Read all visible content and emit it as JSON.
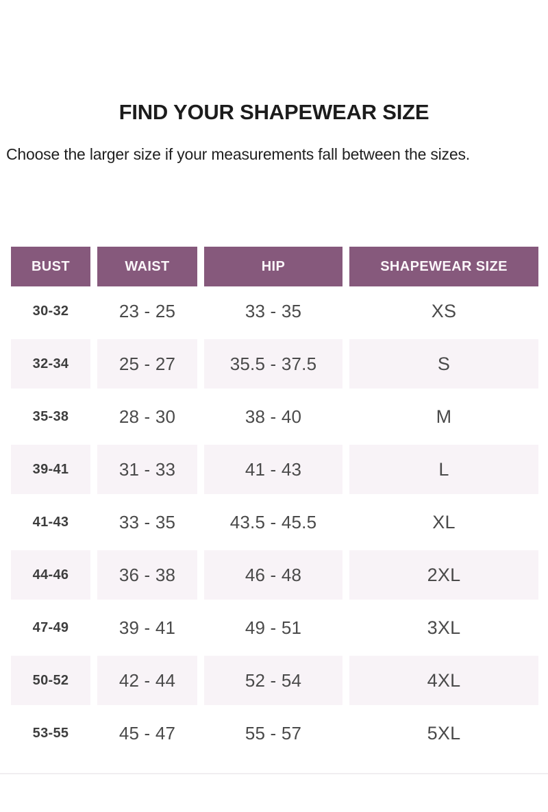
{
  "page": {
    "title": "FIND YOUR SHAPEWEAR SIZE",
    "subtitle": "Choose the larger size if your measurements fall between the sizes."
  },
  "colors": {
    "header_bg": "#86597c",
    "header_text": "#fbf7fa",
    "alt_row_bg": "#f8f3f7",
    "body_text": "#4a4a4a",
    "bust_text": "#3d3d3d",
    "title_text": "#1c1c1c",
    "divider": "#f0eef0"
  },
  "size_chart": {
    "columns": [
      "BUST",
      "WAIST",
      "HIP",
      "SHAPEWEAR SIZE"
    ],
    "rows": [
      {
        "bust": "30-32",
        "waist": "23 - 25",
        "hip": "33 - 35",
        "size": "XS"
      },
      {
        "bust": "32-34",
        "waist": "25 - 27",
        "hip": "35.5 - 37.5",
        "size": "S"
      },
      {
        "bust": "35-38",
        "waist": "28 - 30",
        "hip": "38 - 40",
        "size": "M"
      },
      {
        "bust": "39-41",
        "waist": "31 - 33",
        "hip": "41 - 43",
        "size": "L"
      },
      {
        "bust": "41-43",
        "waist": "33 - 35",
        "hip": "43.5 - 45.5",
        "size": "XL"
      },
      {
        "bust": "44-46",
        "waist": "36 - 38",
        "hip": "46 - 48",
        "size": "2XL"
      },
      {
        "bust": "47-49",
        "waist": "39 - 41",
        "hip": "49 - 51",
        "size": "3XL"
      },
      {
        "bust": "50-52",
        "waist": "42 - 44",
        "hip": "52 - 54",
        "size": "4XL"
      },
      {
        "bust": "53-55",
        "waist": "45 - 47",
        "hip": "55 - 57",
        "size": "5XL"
      }
    ]
  }
}
